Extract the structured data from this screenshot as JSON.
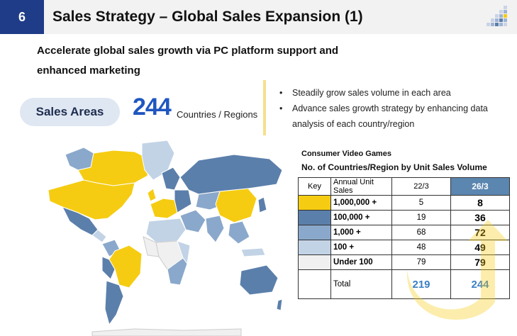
{
  "header": {
    "page_number": "6",
    "title": "Sales Strategy – Global Sales Expansion (1)"
  },
  "subtitle_line1": "Accelerate global sales growth via PC platform support and",
  "subtitle_line2": "enhanced marketing",
  "sales_areas": {
    "pill_label": "Sales Areas",
    "count": "244",
    "unit": "Countries / Regions"
  },
  "bullets": [
    "Steadily grow sales volume in each area",
    "Advance sales growth strategy by enhancing data analysis of each country/region"
  ],
  "table": {
    "caption1": "Consumer Video Games",
    "caption2": "No. of Countries/Region by Unit Sales Volume",
    "headers": [
      "Key",
      "Annual Unit Sales",
      "22/3",
      "26/3"
    ],
    "rows": [
      {
        "range": "1,000,000 +",
        "v22": "5",
        "v26": "8",
        "color": "#f5cc12"
      },
      {
        "range": "100,000 +",
        "v22": "19",
        "v26": "36",
        "color": "#5b7fab"
      },
      {
        "range": "1,000 +",
        "v22": "68",
        "v26": "72",
        "color": "#8aa8cb"
      },
      {
        "range": "100 +",
        "v22": "48",
        "v26": "49",
        "color": "#c2d3e6"
      },
      {
        "range": "Under 100",
        "v22": "79",
        "v26": "79",
        "color": "#f0f0f0"
      }
    ],
    "total_label": "Total",
    "total_22": "219",
    "total_26": "244"
  },
  "colors": {
    "brand_blue": "#1f3c88",
    "accent_yellow": "#f5cc12",
    "header_26": "#5b86b0"
  }
}
